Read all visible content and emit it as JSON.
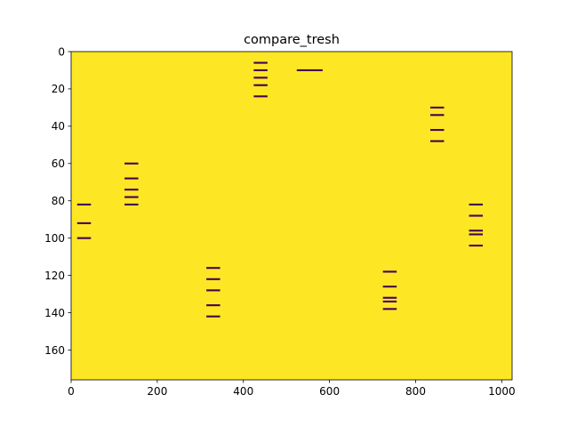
{
  "chart_data": {
    "type": "heatmap",
    "title": "compare_tresh",
    "xlabel": "",
    "ylabel": "",
    "xlim": [
      0,
      1024
    ],
    "ylim": [
      176,
      0
    ],
    "x_ticks": [
      0,
      200,
      400,
      600,
      800,
      1000
    ],
    "y_ticks": [
      0,
      20,
      40,
      60,
      80,
      100,
      120,
      140,
      160
    ],
    "x_tick_labels": [
      "0",
      "200",
      "400",
      "600",
      "800",
      "1000"
    ],
    "y_tick_labels": [
      "0",
      "20",
      "40",
      "60",
      "80",
      "100",
      "120",
      "140",
      "160"
    ],
    "grid": false,
    "colormap": "viridis",
    "background_value": 1,
    "background_color": "#fde725",
    "mark_value": 0,
    "mark_color": "#440154",
    "marks_description_rows_with_value_0": [
      {
        "x_start": 14,
        "x_end": 46,
        "rows": [
          82,
          92,
          100
        ]
      },
      {
        "x_start": 124,
        "x_end": 156,
        "rows": [
          60,
          68,
          74,
          78,
          82
        ]
      },
      {
        "x_start": 314,
        "x_end": 346,
        "rows": [
          116,
          122,
          128,
          136,
          142
        ]
      },
      {
        "x_start": 424,
        "x_end": 456,
        "rows": [
          6,
          10,
          14,
          18,
          24
        ]
      },
      {
        "x_start": 524,
        "x_end": 584,
        "rows": [
          10
        ]
      },
      {
        "x_start": 724,
        "x_end": 756,
        "rows": [
          118,
          126,
          132,
          134,
          138
        ]
      },
      {
        "x_start": 834,
        "x_end": 866,
        "rows": [
          30,
          34,
          42,
          48
        ]
      },
      {
        "x_start": 924,
        "x_end": 956,
        "rows": [
          82,
          88,
          96,
          98,
          104
        ]
      }
    ]
  }
}
